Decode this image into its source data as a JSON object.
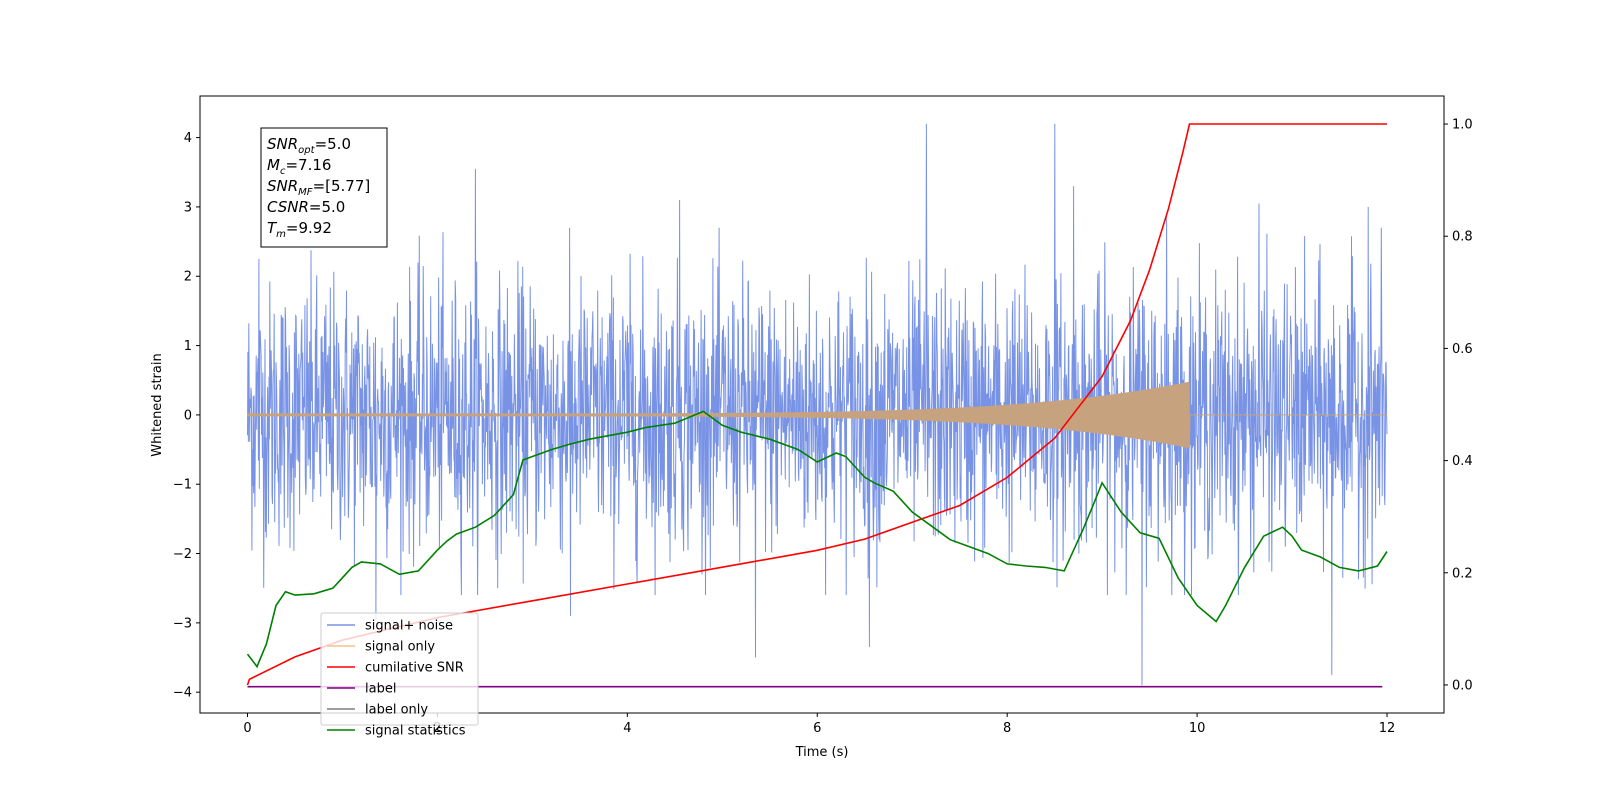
{
  "chart_data": {
    "type": "line",
    "xlabel": "Time (s)",
    "ylabel": "Whitened strain",
    "xlim": [
      -0.5,
      12.6
    ],
    "ylim": [
      -4.3,
      4.6
    ],
    "y2lim": [
      -0.05,
      1.05
    ],
    "x_ticks": [
      0,
      2,
      4,
      6,
      8,
      10,
      12
    ],
    "y_ticks": [
      -4,
      -3,
      -2,
      -1,
      0,
      1,
      2,
      3,
      4
    ],
    "y2_ticks": [
      0.0,
      0.2,
      0.4,
      0.6,
      0.8,
      1.0
    ],
    "x_tick_labels": [
      "0",
      "2",
      "4",
      "6",
      "8",
      "10",
      "12"
    ],
    "y_tick_labels": [
      "−4",
      "−3",
      "−2",
      "−1",
      "0",
      "1",
      "2",
      "3",
      "4"
    ],
    "y2_tick_labels": [
      "0.0",
      "0.2",
      "0.4",
      "0.6",
      "0.8",
      "1.0"
    ],
    "annotation": {
      "lines": [
        {
          "sym": "SNR",
          "sub": "opt",
          "val": "=5.0"
        },
        {
          "sym": "M",
          "sub": "c",
          "val": "=7.16"
        },
        {
          "sym": "SNR",
          "sub": "MF",
          "val": "=[5.77]"
        },
        {
          "sym": "CSNR",
          "sub": "",
          "val": "=5.0"
        },
        {
          "sym": "T",
          "sub": "m",
          "val": "=9.92"
        }
      ]
    },
    "legend": {
      "placement": "lower left",
      "entries": [
        {
          "label": "signal+ noise",
          "color": "#7893e6"
        },
        {
          "label": "signal only",
          "color": "#f4c38f"
        },
        {
          "label": "cumilative SNR",
          "color": "#ff0000"
        },
        {
          "label": "label",
          "color": "#800080"
        },
        {
          "label": "label only",
          "color": "#7f7f7f"
        },
        {
          "label": "signal statistics",
          "color": "#008000"
        }
      ]
    },
    "series": [
      {
        "name": "signal+ noise",
        "axis": "left",
        "color": "#7893e6",
        "kind": "noise",
        "t_start": 0,
        "t_end": 12,
        "envelope_typical": [
          -1.7,
          1.9
        ],
        "spikes": [
          [
            0.12,
            2.25
          ],
          [
            2.4,
            3.55
          ],
          [
            4.55,
            3.1
          ],
          [
            7.15,
            4.2
          ],
          [
            8.5,
            4.2
          ],
          [
            9.42,
            -3.9
          ],
          [
            11.42,
            -3.75
          ],
          [
            5.35,
            -3.5
          ],
          [
            6.55,
            -3.35
          ],
          [
            8.7,
            3.3
          ],
          [
            9.68,
            2.85
          ],
          [
            10.65,
            3.05
          ],
          [
            11.8,
            3.0
          ],
          [
            3.4,
            -2.9
          ],
          [
            1.35,
            -2.95
          ]
        ]
      },
      {
        "name": "signal only",
        "axis": "left",
        "color": "#c6a37e",
        "kind": "chirp",
        "t_start": 0,
        "t_merge": 9.92,
        "t_end": 12,
        "amp_start": 0.02,
        "amp_merge": 0.48
      },
      {
        "name": "cumilative SNR",
        "axis": "right",
        "color": "#ff0000",
        "x": [
          0,
          0.02,
          0.5,
          1,
          2,
          3,
          4,
          5,
          6,
          6.5,
          7,
          7.5,
          8,
          8.5,
          9,
          9.3,
          9.5,
          9.7,
          9.85,
          9.92,
          12
        ],
        "y": [
          0.0,
          0.01,
          0.05,
          0.08,
          0.12,
          0.15,
          0.18,
          0.21,
          0.24,
          0.26,
          0.29,
          0.32,
          0.37,
          0.44,
          0.55,
          0.65,
          0.74,
          0.85,
          0.95,
          1.0,
          1.0
        ]
      },
      {
        "name": "label",
        "axis": "left",
        "color": "#800080",
        "x": [
          0,
          11.95
        ],
        "y": [
          -3.92,
          -3.92
        ]
      },
      {
        "name": "signal statistics",
        "axis": "left",
        "color": "#008000",
        "x": [
          0,
          0.1,
          0.2,
          0.3,
          0.4,
          0.5,
          0.7,
          0.9,
          1.0,
          1.1,
          1.2,
          1.4,
          1.6,
          1.8,
          2.0,
          2.1,
          2.2,
          2.4,
          2.6,
          2.8,
          2.9,
          3.0,
          3.2,
          3.4,
          3.6,
          3.8,
          4.0,
          4.2,
          4.5,
          4.8,
          5.0,
          5.2,
          5.5,
          5.8,
          6.0,
          6.2,
          6.3,
          6.5,
          6.6,
          6.8,
          7.0,
          7.2,
          7.4,
          7.6,
          7.8,
          8.0,
          8.2,
          8.4,
          8.6,
          8.8,
          8.9,
          9.0,
          9.2,
          9.4,
          9.6,
          9.8,
          10.0,
          10.2,
          10.3,
          10.5,
          10.7,
          10.9,
          11.0,
          11.1,
          11.3,
          11.5,
          11.7,
          11.9,
          12.0
        ],
        "y": [
          -3.45,
          -3.63,
          -3.3,
          -2.75,
          -2.55,
          -2.6,
          -2.58,
          -2.5,
          -2.35,
          -2.2,
          -2.12,
          -2.15,
          -2.3,
          -2.25,
          -1.95,
          -1.82,
          -1.72,
          -1.62,
          -1.45,
          -1.15,
          -0.65,
          -0.6,
          -0.5,
          -0.42,
          -0.35,
          -0.3,
          -0.25,
          -0.18,
          -0.12,
          0.05,
          -0.15,
          -0.25,
          -0.35,
          -0.5,
          -0.68,
          -0.55,
          -0.6,
          -0.9,
          -0.98,
          -1.1,
          -1.4,
          -1.6,
          -1.8,
          -1.9,
          -2.0,
          -2.15,
          -2.18,
          -2.2,
          -2.25,
          -1.65,
          -1.32,
          -0.98,
          -1.4,
          -1.7,
          -1.78,
          -2.35,
          -2.75,
          -2.98,
          -2.75,
          -2.2,
          -1.75,
          -1.62,
          -1.75,
          -1.95,
          -2.05,
          -2.2,
          -2.25,
          -2.18,
          -1.97
        ]
      }
    ]
  }
}
